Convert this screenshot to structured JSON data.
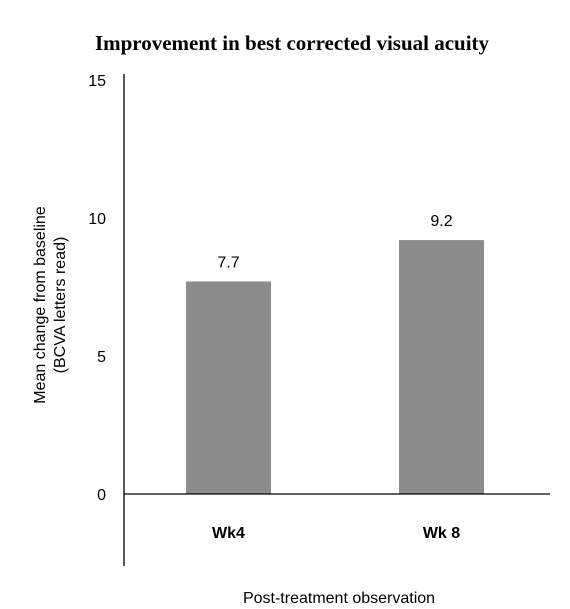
{
  "chart_data": {
    "type": "bar",
    "title": "Improvement in best corrected visual acuity",
    "categories": [
      "Wk4",
      "Wk 8"
    ],
    "values": [
      7.7,
      9.2
    ],
    "data_labels": [
      "7.7",
      "9.2"
    ],
    "ylabel_lines": [
      "Mean change from baseline",
      "(BCVA letters read)"
    ],
    "xlabel": "Post-treatment observation",
    "ylim": [
      0,
      15
    ],
    "yticks": [
      0,
      5,
      10,
      15
    ],
    "grid": false,
    "bar_color": "#8c8c8c"
  }
}
